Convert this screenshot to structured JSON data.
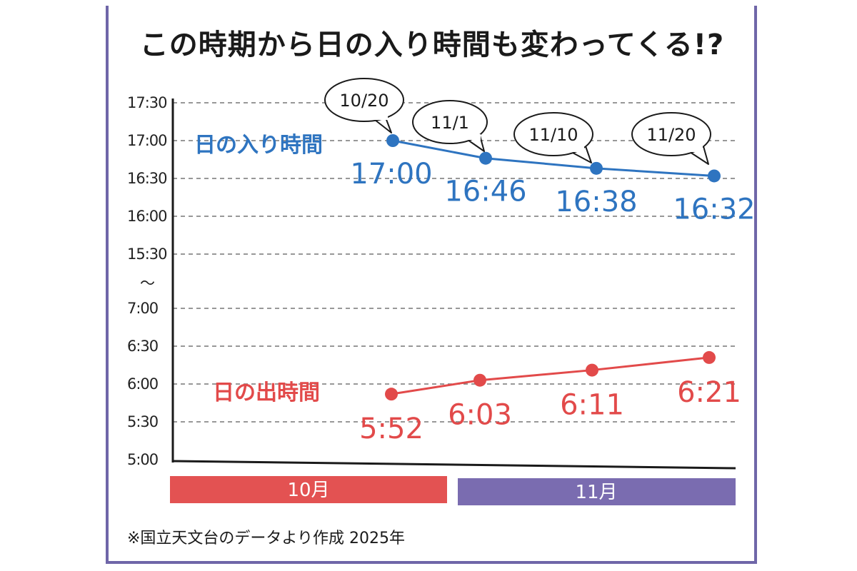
{
  "title": "この時期から日の入り時間も変わってくる!?",
  "footnote": "※国立天文台のデータより作成 2025年",
  "colors": {
    "sunset": "#2e74c0",
    "sunrise": "#e24a4a",
    "october": "#e35252",
    "november": "#7a6cb0",
    "frame": "#6f66a8"
  },
  "chart_data": {
    "type": "line",
    "title": "この時期から日の入り時間も変わってくる!?",
    "y_axis_break": "〜",
    "y_ticks_upper": [
      "17:30",
      "17:00",
      "16:30",
      "16:00",
      "15:30"
    ],
    "y_ticks_lower": [
      "7:00",
      "6:30",
      "6:00",
      "5:30",
      "5:00"
    ],
    "x_categories": [
      "10/20",
      "11/1",
      "11/10",
      "11/20"
    ],
    "months": [
      "10月",
      "11月"
    ],
    "series": [
      {
        "name": "日の入り時間",
        "values_minutes": [
          1020,
          1006,
          998,
          992
        ],
        "labels": [
          "17:00",
          "16:46",
          "16:38",
          "16:32"
        ]
      },
      {
        "name": "日の出時間",
        "values_minutes": [
          352,
          363,
          371,
          381
        ],
        "labels": [
          "5:52",
          "6:03",
          "6:11",
          "6:21"
        ]
      }
    ]
  }
}
